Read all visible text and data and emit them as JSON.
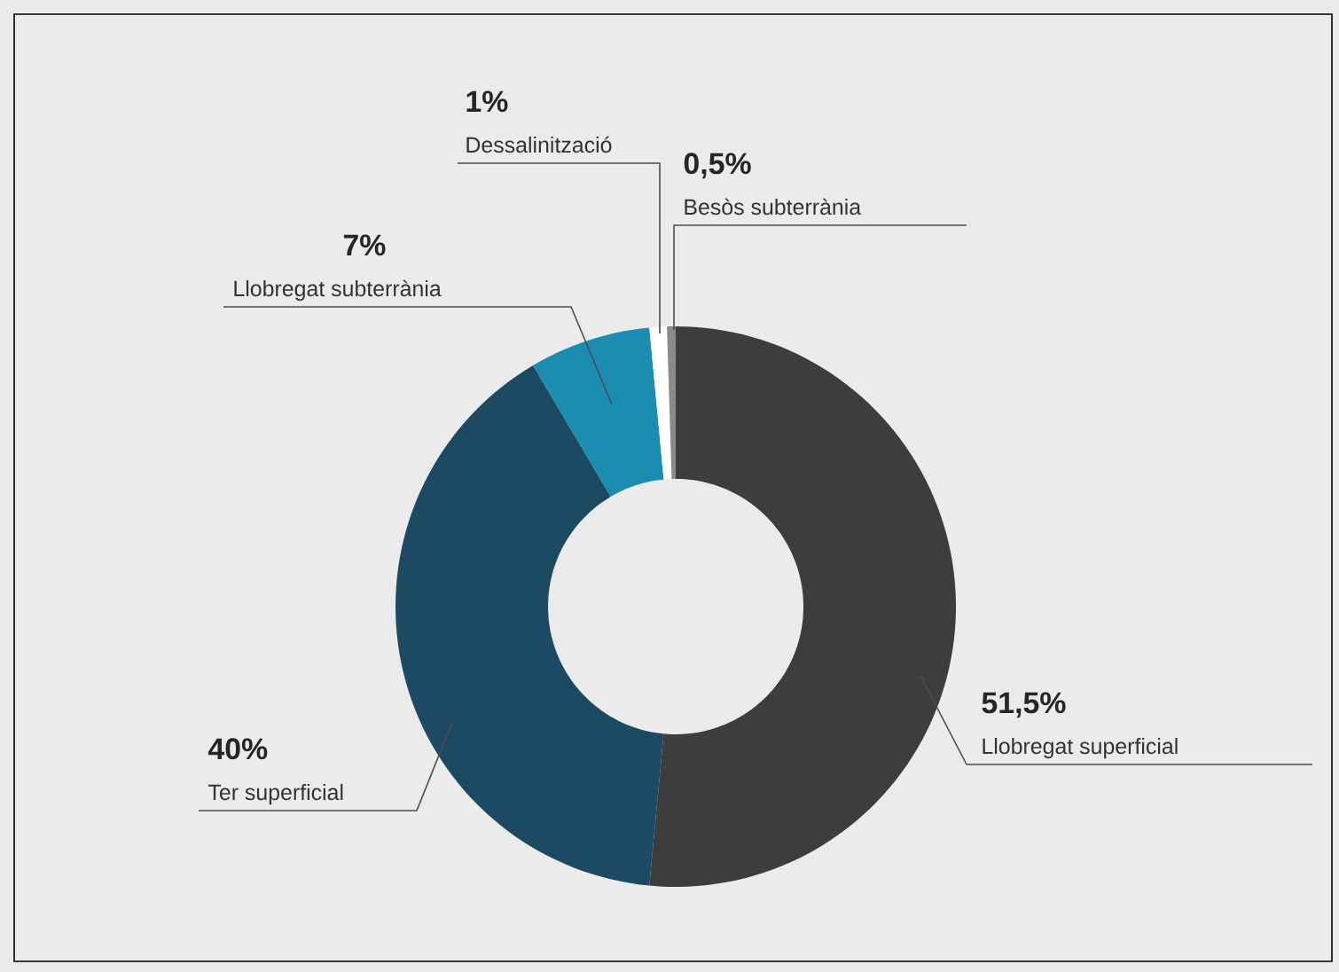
{
  "chart_data": {
    "type": "donut",
    "categories": [
      "Llobregat superficial",
      "Ter superficial",
      "Llobregat subterrània",
      "Dessalinització",
      "Besòs subterrània"
    ],
    "values": [
      51.5,
      40,
      7,
      1,
      0.5
    ],
    "value_labels": [
      "51,5%",
      "40%",
      "7%",
      "1%",
      "0,5%"
    ],
    "colors": [
      "#3d3d3d",
      "#1c4a62",
      "#1a8db0",
      "#ffffff",
      "#8a8a8a"
    ]
  }
}
